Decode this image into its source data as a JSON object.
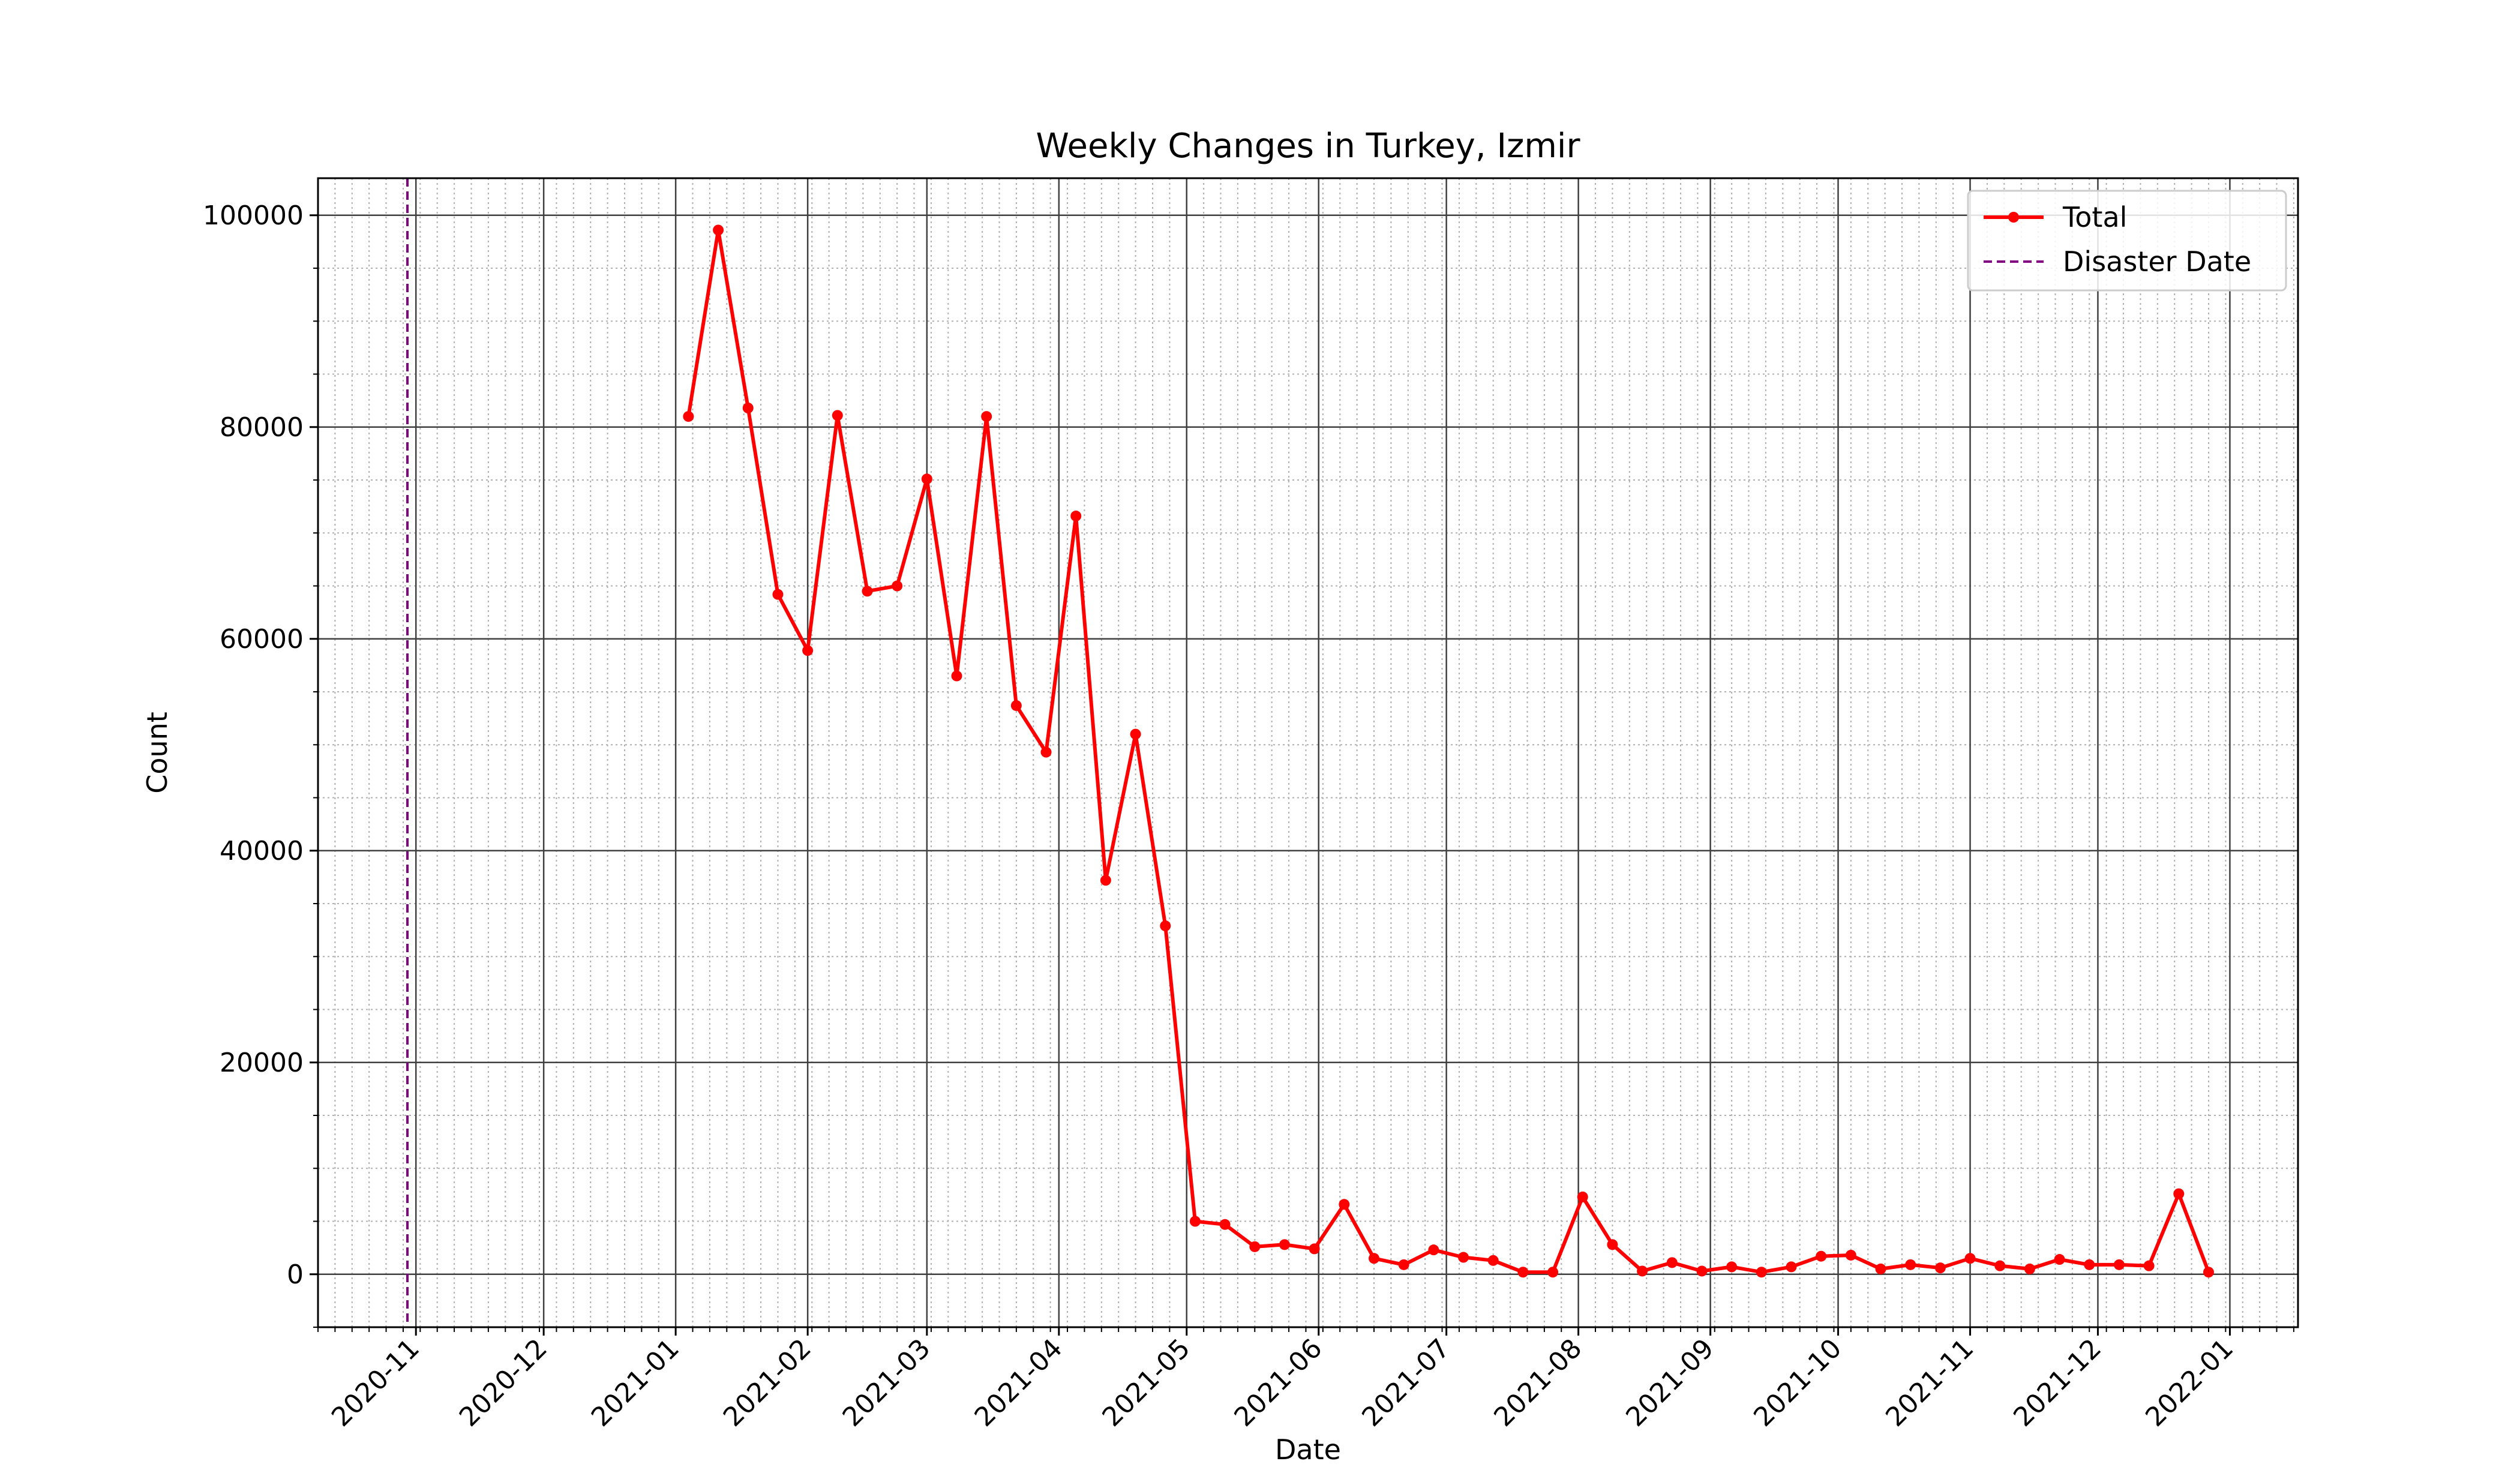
{
  "chart_data": {
    "type": "line",
    "title": "Weekly Changes in Turkey, Izmir",
    "xlabel": "Date",
    "ylabel": "Count",
    "xlim": [
      "2020-10-09",
      "2022-01-17"
    ],
    "ylim": [
      -5000,
      103500
    ],
    "grid": true,
    "minor_grid": true,
    "legend_position": "top-right",
    "x_tick_labels": [
      "2020-11",
      "2020-12",
      "2021-01",
      "2021-02",
      "2021-03",
      "2021-04",
      "2021-05",
      "2021-06",
      "2021-07",
      "2021-08",
      "2021-09",
      "2021-10",
      "2021-11",
      "2021-12",
      "2022-01"
    ],
    "x_tick_dates": [
      "2020-11-01",
      "2020-12-01",
      "2021-01-01",
      "2021-02-01",
      "2021-03-01",
      "2021-04-01",
      "2021-05-01",
      "2021-06-01",
      "2021-07-01",
      "2021-08-01",
      "2021-09-01",
      "2021-10-01",
      "2021-11-01",
      "2021-12-01",
      "2022-01-01"
    ],
    "y_ticks": [
      0,
      20000,
      40000,
      60000,
      80000,
      100000
    ],
    "y_tick_labels": [
      "0",
      "20000",
      "40000",
      "60000",
      "80000",
      "100000"
    ],
    "disaster_date": "2020-10-30",
    "series": [
      {
        "name": "Total",
        "color": "#ff0000",
        "x": [
          "2021-01-04",
          "2021-01-11",
          "2021-01-18",
          "2021-01-25",
          "2021-02-01",
          "2021-02-08",
          "2021-02-15",
          "2021-02-22",
          "2021-03-01",
          "2021-03-08",
          "2021-03-15",
          "2021-03-22",
          "2021-03-29",
          "2021-04-05",
          "2021-04-12",
          "2021-04-19",
          "2021-04-26",
          "2021-05-03",
          "2021-05-10",
          "2021-05-17",
          "2021-05-24",
          "2021-05-31",
          "2021-06-07",
          "2021-06-14",
          "2021-06-21",
          "2021-06-28",
          "2021-07-05",
          "2021-07-12",
          "2021-07-19",
          "2021-07-26",
          "2021-08-02",
          "2021-08-09",
          "2021-08-16",
          "2021-08-23",
          "2021-08-30",
          "2021-09-06",
          "2021-09-13",
          "2021-09-20",
          "2021-09-27",
          "2021-10-04",
          "2021-10-11",
          "2021-10-18",
          "2021-10-25",
          "2021-11-01",
          "2021-11-08",
          "2021-11-15",
          "2021-11-22",
          "2021-11-29",
          "2021-12-06",
          "2021-12-13",
          "2021-12-20",
          "2021-12-27"
        ],
        "values": [
          81000,
          98600,
          81800,
          64200,
          58900,
          81100,
          64500,
          65000,
          75100,
          56500,
          81000,
          53700,
          49300,
          71600,
          37200,
          51000,
          32900,
          5000,
          4700,
          2600,
          2800,
          2400,
          6600,
          1500,
          900,
          2300,
          1600,
          1300,
          200,
          200,
          7300,
          2800,
          300,
          1100,
          300,
          700,
          200,
          700,
          1700,
          1800,
          500,
          900,
          600,
          1500,
          800,
          500,
          1400,
          900,
          900,
          800,
          7600,
          200
        ]
      },
      {
        "name": "Disaster Date",
        "color": "#800080"
      }
    ]
  }
}
